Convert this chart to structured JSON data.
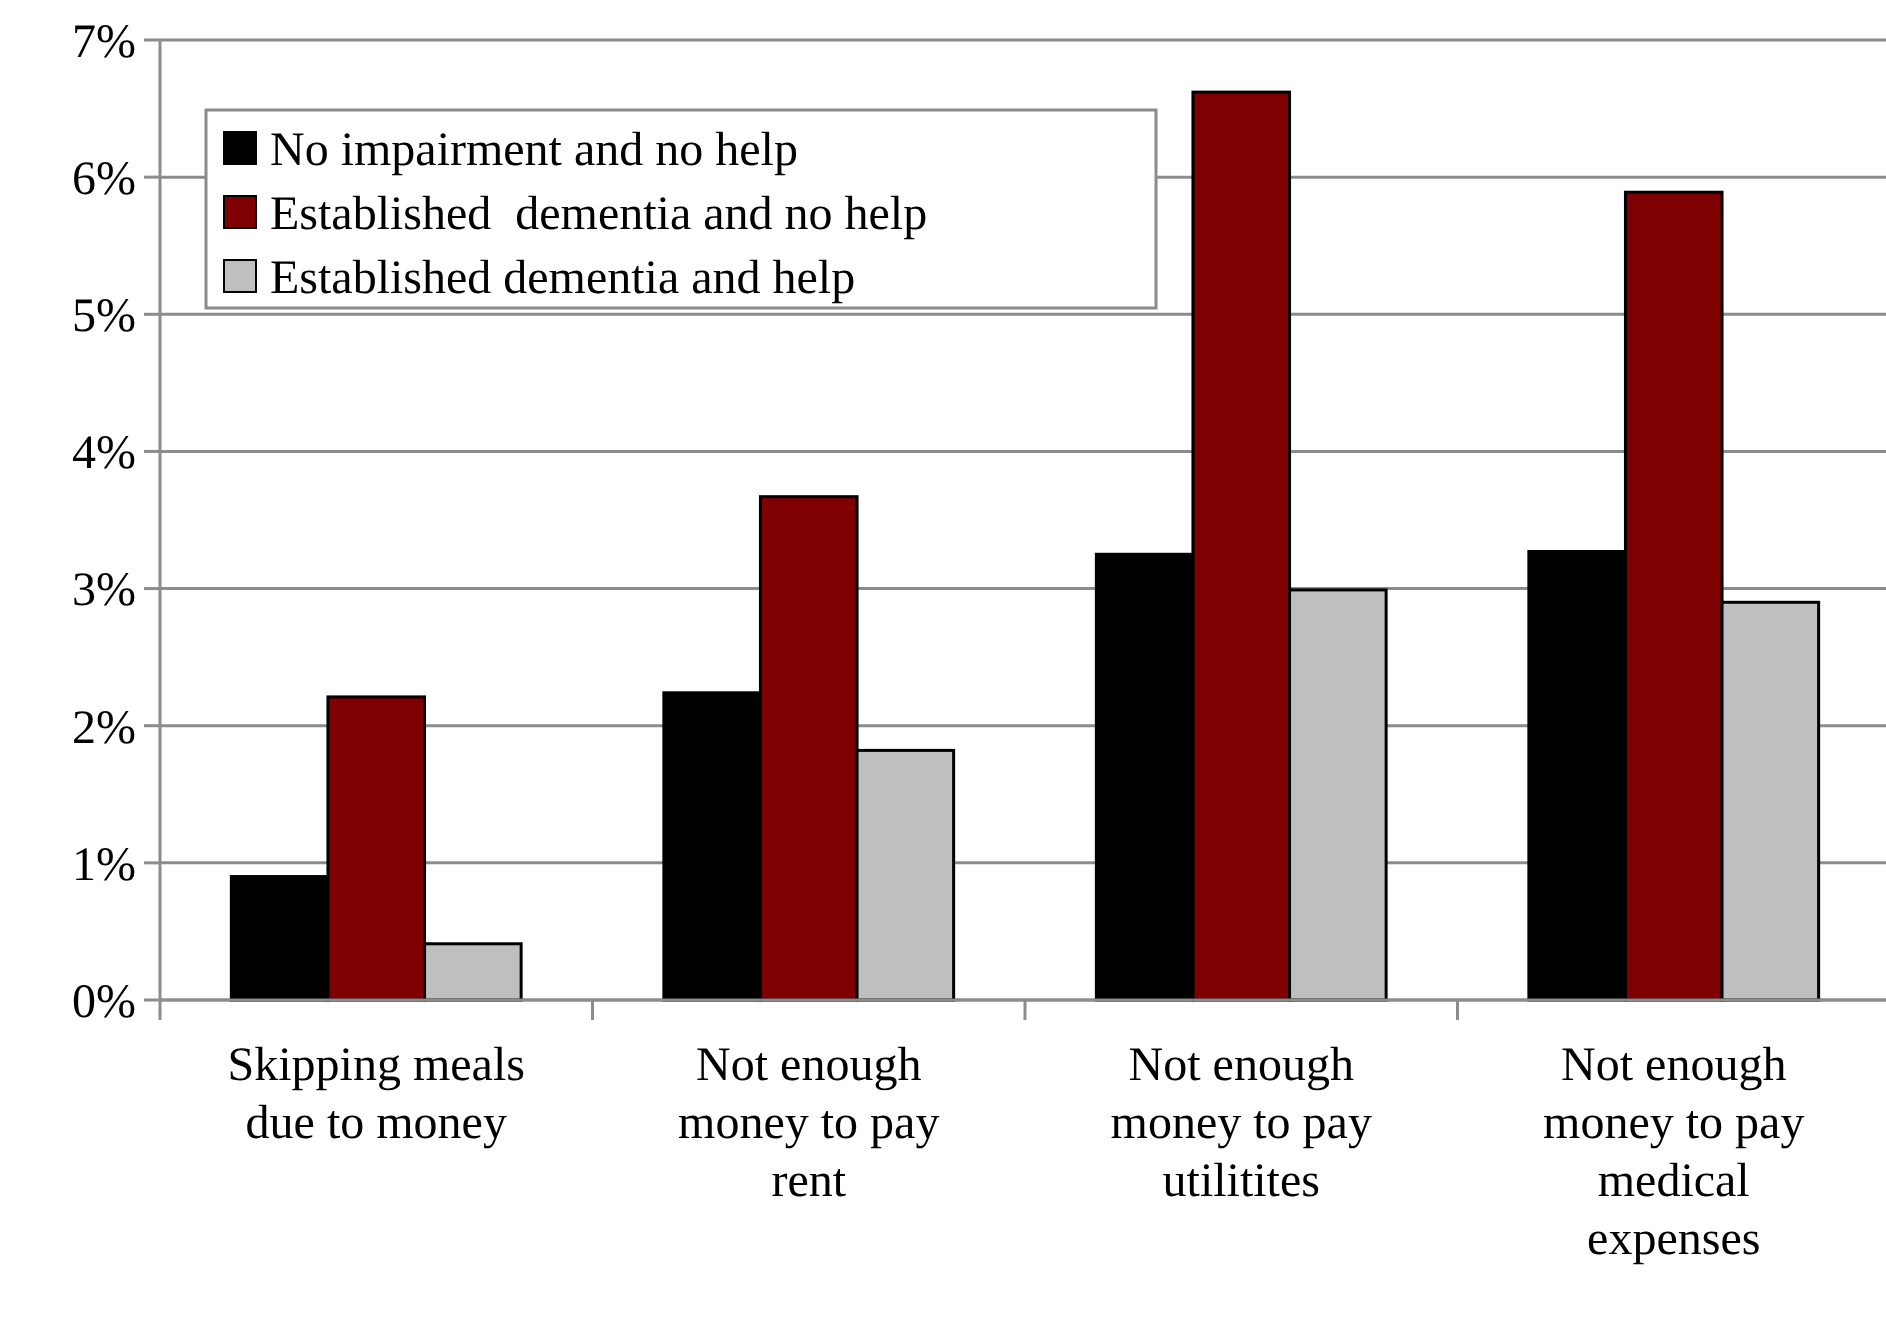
{
  "chart_data": {
    "type": "bar",
    "categories": [
      "Skipping meals due to money",
      "Not enough money to pay rent",
      "Not enough money to pay utilitites",
      "Not enough money to pay medical expenses"
    ],
    "series": [
      {
        "name": "No impairment and no help",
        "color": "#000000",
        "values": [
          0.9,
          2.24,
          3.25,
          3.27
        ]
      },
      {
        "name": "Established  dementia and no help",
        "color": "#7f0000",
        "values": [
          2.21,
          3.67,
          6.62,
          5.89
        ]
      },
      {
        "name": "Established dementia and help",
        "color": "#bfbfbf",
        "values": [
          0.41,
          1.82,
          2.99,
          2.9
        ]
      }
    ],
    "ylim": [
      0,
      7
    ],
    "yticks": [
      {
        "value": 0,
        "label": "0%"
      },
      {
        "value": 1,
        "label": "1%"
      },
      {
        "value": 2,
        "label": "2%"
      },
      {
        "value": 3,
        "label": "3%"
      },
      {
        "value": 4,
        "label": "4%"
      },
      {
        "value": 5,
        "label": "5%"
      },
      {
        "value": 6,
        "label": "6%"
      },
      {
        "value": 7,
        "label": "7%"
      }
    ],
    "grid": "y",
    "legend": "top left"
  }
}
